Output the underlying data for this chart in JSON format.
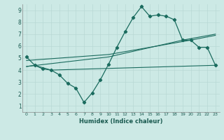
{
  "xlabel": "Humidex (Indice chaleur)",
  "xlim": [
    -0.5,
    23.5
  ],
  "ylim": [
    0.5,
    9.5
  ],
  "xticks": [
    0,
    1,
    2,
    3,
    4,
    5,
    6,
    7,
    8,
    9,
    10,
    11,
    12,
    13,
    14,
    15,
    16,
    17,
    18,
    19,
    20,
    21,
    22,
    23
  ],
  "yticks": [
    1,
    2,
    3,
    4,
    5,
    6,
    7,
    8,
    9
  ],
  "bg_color": "#cce9e5",
  "line_color": "#1a6b5e",
  "grid_color": "#b8d8d4",
  "line1_x": [
    0,
    1,
    2,
    3,
    4,
    5,
    6,
    7,
    8,
    9,
    10,
    11,
    12,
    13,
    14,
    15,
    16,
    17,
    18,
    19,
    20,
    21,
    22,
    23
  ],
  "line1_y": [
    5.1,
    4.4,
    4.1,
    4.0,
    3.6,
    2.9,
    2.5,
    1.3,
    2.1,
    3.2,
    4.5,
    5.9,
    7.2,
    8.4,
    9.3,
    8.5,
    8.6,
    8.5,
    8.2,
    6.5,
    6.5,
    5.9,
    5.9,
    4.4
  ],
  "line2_x": [
    0,
    1,
    3,
    23
  ],
  "line2_y": [
    4.3,
    4.4,
    4.0,
    4.4
  ],
  "line3_x": [
    0,
    10,
    19,
    23
  ],
  "line3_y": [
    4.3,
    5.1,
    6.5,
    7.0
  ],
  "line4_x": [
    0,
    10,
    20,
    23
  ],
  "line4_y": [
    4.8,
    5.3,
    6.5,
    6.9
  ]
}
